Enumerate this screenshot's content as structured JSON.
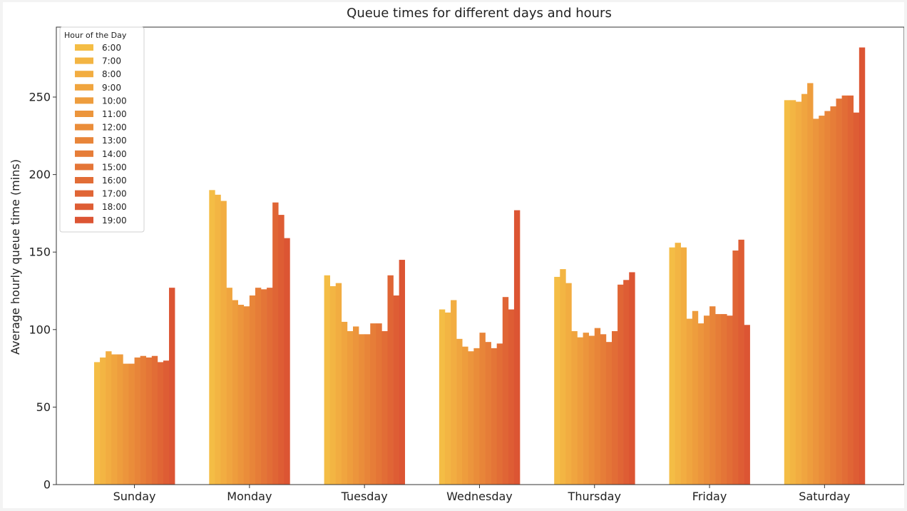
{
  "chart_data": {
    "type": "bar",
    "title": "Queue times for different days and hours",
    "xlabel": "",
    "ylabel": "Average hourly queue time (mins)",
    "ylim": [
      0,
      290
    ],
    "yticks": [
      0,
      50,
      100,
      150,
      200,
      250
    ],
    "categories": [
      "Sunday",
      "Monday",
      "Tuesday",
      "Wednesday",
      "Thursday",
      "Friday",
      "Saturday"
    ],
    "legend": {
      "title": "Hour of the Day",
      "placement": "top-left"
    },
    "grid": false,
    "series": [
      {
        "name": "6:00",
        "color": "#f4bd45",
        "values": [
          79,
          190,
          135,
          113,
          134,
          153,
          248
        ]
      },
      {
        "name": "7:00",
        "color": "#f3b543",
        "values": [
          82,
          187,
          128,
          111,
          139,
          156,
          248
        ]
      },
      {
        "name": "8:00",
        "color": "#f2ad41",
        "values": [
          86,
          183,
          130,
          119,
          130,
          153,
          247
        ]
      },
      {
        "name": "9:00",
        "color": "#f0a53f",
        "values": [
          84,
          127,
          105,
          94,
          99,
          107,
          252
        ]
      },
      {
        "name": "10:00",
        "color": "#ee9d3d",
        "values": [
          84,
          119,
          99,
          89,
          95,
          112,
          259
        ]
      },
      {
        "name": "11:00",
        "color": "#ec953c",
        "values": [
          78,
          116,
          102,
          86,
          98,
          104,
          236
        ]
      },
      {
        "name": "12:00",
        "color": "#ea8d3a",
        "values": [
          78,
          115,
          97,
          88,
          96,
          109,
          238
        ]
      },
      {
        "name": "13:00",
        "color": "#e88539",
        "values": [
          82,
          122,
          97,
          98,
          101,
          115,
          241
        ]
      },
      {
        "name": "14:00",
        "color": "#e67d38",
        "values": [
          83,
          127,
          104,
          92,
          97,
          110,
          244
        ]
      },
      {
        "name": "15:00",
        "color": "#e47537",
        "values": [
          82,
          126,
          104,
          88,
          92,
          110,
          249
        ]
      },
      {
        "name": "16:00",
        "color": "#e26d36",
        "values": [
          83,
          127,
          99,
          91,
          99,
          109,
          251
        ]
      },
      {
        "name": "17:00",
        "color": "#e06535",
        "values": [
          79,
          182,
          135,
          121,
          129,
          151,
          251
        ]
      },
      {
        "name": "18:00",
        "color": "#de5d34",
        "values": [
          80,
          174,
          122,
          113,
          132,
          158,
          240
        ]
      },
      {
        "name": "19:00",
        "color": "#dc5533",
        "values": [
          127,
          159,
          145,
          177,
          137,
          103,
          282
        ]
      }
    ]
  }
}
